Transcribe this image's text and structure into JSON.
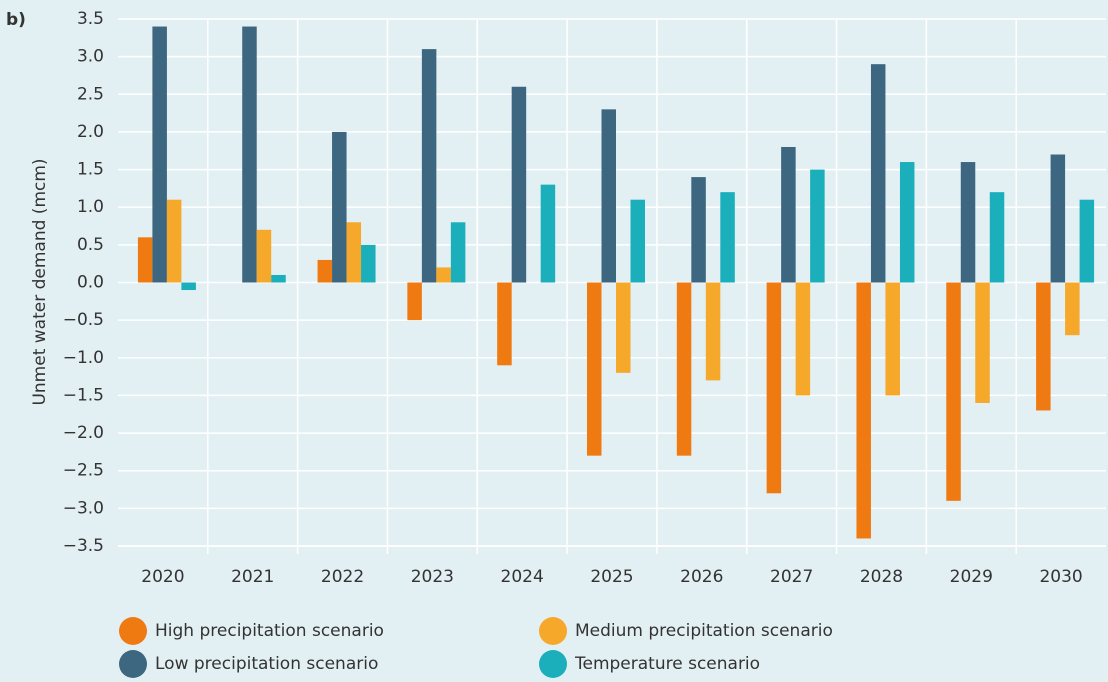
{
  "chart_data": {
    "type": "bar",
    "panel_label": "b)",
    "y_label": "Unmet water demand (mcm)",
    "categories": [
      "2020",
      "2021",
      "2022",
      "2023",
      "2024",
      "2025",
      "2026",
      "2027",
      "2028",
      "2029",
      "2030"
    ],
    "series": [
      {
        "name": "High precipitation scenario",
        "color": "#f07a12",
        "values": [
          0.6,
          0,
          0.3,
          -0.5,
          -1.1,
          -2.3,
          -2.3,
          -2.8,
          -3.4,
          -2.9,
          -1.7
        ]
      },
      {
        "name": "Low precipitation scenario",
        "color": "#3d6680",
        "values": [
          3.4,
          3.4,
          2.0,
          3.1,
          2.6,
          2.3,
          1.4,
          1.8,
          2.9,
          1.6,
          1.7
        ]
      },
      {
        "name": "Medium precipitation scenario",
        "color": "#f5a82a",
        "values": [
          1.1,
          0.7,
          0.8,
          0.2,
          0,
          -1.2,
          -1.3,
          -1.5,
          -1.5,
          -1.6,
          -0.7
        ]
      },
      {
        "name": "Temperature scenario",
        "color": "#1aafbb",
        "values": [
          -0.1,
          0.1,
          0.5,
          0.8,
          1.3,
          1.1,
          1.2,
          1.5,
          1.6,
          1.2,
          1.1
        ]
      }
    ],
    "ylim": [
      -3.5,
      3.5
    ],
    "yticks": [
      3.5,
      {
        "value": 3,
        "label": "3.0"
      },
      2.5,
      {
        "value": 2,
        "label": "2.0"
      },
      1.5,
      {
        "value": 1,
        "label": "1.0"
      },
      0.5,
      {
        "value": 0,
        "label": "0.0"
      },
      {
        "value": -0.5,
        "label": "−0.5"
      },
      {
        "value": -1,
        "label": "−1.0"
      },
      {
        "value": -1.5,
        "label": "−1.5"
      },
      {
        "value": -2,
        "label": "−2.0"
      },
      {
        "value": -2.5,
        "label": "−2.5"
      },
      {
        "value": -3,
        "label": "−3.0"
      },
      {
        "value": -3.5,
        "label": "−3.5"
      }
    ],
    "grid": true
  }
}
